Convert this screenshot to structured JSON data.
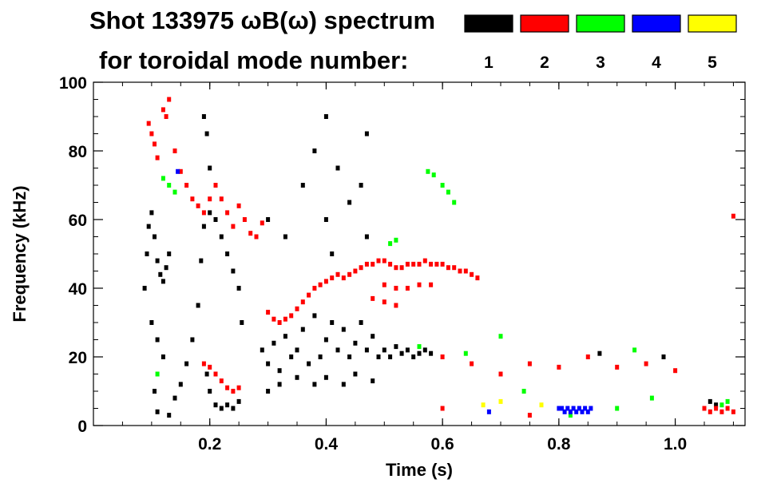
{
  "chart_data": {
    "type": "heatmap",
    "title_line1": "Shot 133975 ωB(ω) spectrum",
    "title_line2": "for toroidal mode number:",
    "xlabel": "Time (s)",
    "ylabel": "Frequency (kHz)",
    "xlim": [
      0.0,
      1.12
    ],
    "ylim": [
      0,
      100
    ],
    "x_ticks": [
      {
        "value": 0.2,
        "label": "0.2"
      },
      {
        "value": 0.4,
        "label": "0.4"
      },
      {
        "value": 0.6,
        "label": "0.6"
      },
      {
        "value": 0.8,
        "label": "0.8"
      },
      {
        "value": 1.0,
        "label": "1.0"
      }
    ],
    "y_ticks": [
      {
        "value": 0,
        "label": "0"
      },
      {
        "value": 20,
        "label": "20"
      },
      {
        "value": 40,
        "label": "40"
      },
      {
        "value": 60,
        "label": "60"
      },
      {
        "value": 80,
        "label": "80"
      },
      {
        "value": 100,
        "label": "100"
      }
    ],
    "legend": [
      {
        "label": "1",
        "color": "#000000"
      },
      {
        "label": "2",
        "color": "#ff0000"
      },
      {
        "label": "3",
        "color": "#00ff00"
      },
      {
        "label": "4",
        "color": "#0000ff"
      },
      {
        "label": "5",
        "color": "#ffff00"
      }
    ],
    "series": [
      {
        "mode": 1,
        "color": "#000000",
        "points": [
          [
            0.088,
            40
          ],
          [
            0.092,
            50
          ],
          [
            0.095,
            58
          ],
          [
            0.1,
            62
          ],
          [
            0.105,
            55
          ],
          [
            0.11,
            48
          ],
          [
            0.115,
            44
          ],
          [
            0.12,
            42
          ],
          [
            0.125,
            46
          ],
          [
            0.13,
            50
          ],
          [
            0.1,
            30
          ],
          [
            0.11,
            25
          ],
          [
            0.12,
            20
          ],
          [
            0.105,
            10
          ],
          [
            0.11,
            4
          ],
          [
            0.13,
            3
          ],
          [
            0.14,
            8
          ],
          [
            0.15,
            12
          ],
          [
            0.16,
            18
          ],
          [
            0.17,
            25
          ],
          [
            0.18,
            35
          ],
          [
            0.185,
            48
          ],
          [
            0.19,
            58
          ],
          [
            0.2,
            62
          ],
          [
            0.21,
            60
          ],
          [
            0.22,
            55
          ],
          [
            0.23,
            50
          ],
          [
            0.24,
            45
          ],
          [
            0.25,
            40
          ],
          [
            0.255,
            30
          ],
          [
            0.195,
            15
          ],
          [
            0.2,
            10
          ],
          [
            0.21,
            6
          ],
          [
            0.22,
            5
          ],
          [
            0.23,
            6
          ],
          [
            0.24,
            5
          ],
          [
            0.25,
            7
          ],
          [
            0.19,
            90
          ],
          [
            0.195,
            85
          ],
          [
            0.2,
            75
          ],
          [
            0.29,
            22
          ],
          [
            0.3,
            18
          ],
          [
            0.31,
            24
          ],
          [
            0.32,
            16
          ],
          [
            0.33,
            26
          ],
          [
            0.34,
            20
          ],
          [
            0.35,
            22
          ],
          [
            0.36,
            28
          ],
          [
            0.37,
            18
          ],
          [
            0.38,
            32
          ],
          [
            0.39,
            20
          ],
          [
            0.4,
            25
          ],
          [
            0.41,
            30
          ],
          [
            0.42,
            22
          ],
          [
            0.43,
            28
          ],
          [
            0.44,
            20
          ],
          [
            0.45,
            24
          ],
          [
            0.46,
            30
          ],
          [
            0.47,
            22
          ],
          [
            0.48,
            26
          ],
          [
            0.49,
            20
          ],
          [
            0.5,
            22
          ],
          [
            0.51,
            20
          ],
          [
            0.52,
            23
          ],
          [
            0.53,
            21
          ],
          [
            0.54,
            22
          ],
          [
            0.55,
            20
          ],
          [
            0.56,
            21
          ],
          [
            0.57,
            22
          ],
          [
            0.58,
            21
          ],
          [
            0.3,
            10
          ],
          [
            0.32,
            12
          ],
          [
            0.35,
            14
          ],
          [
            0.38,
            12
          ],
          [
            0.4,
            14
          ],
          [
            0.43,
            12
          ],
          [
            0.45,
            15
          ],
          [
            0.48,
            13
          ],
          [
            0.3,
            60
          ],
          [
            0.33,
            55
          ],
          [
            0.36,
            70
          ],
          [
            0.38,
            80
          ],
          [
            0.4,
            90
          ],
          [
            0.4,
            60
          ],
          [
            0.41,
            50
          ],
          [
            0.42,
            75
          ],
          [
            0.44,
            65
          ],
          [
            0.46,
            70
          ],
          [
            0.47,
            85
          ],
          [
            0.47,
            55
          ],
          [
            0.87,
            21
          ],
          [
            0.98,
            20
          ],
          [
            1.06,
            7
          ],
          [
            1.07,
            6
          ]
        ]
      },
      {
        "mode": 2,
        "color": "#ff0000",
        "points": [
          [
            0.095,
            88
          ],
          [
            0.1,
            85
          ],
          [
            0.105,
            82
          ],
          [
            0.11,
            78
          ],
          [
            0.12,
            92
          ],
          [
            0.125,
            90
          ],
          [
            0.13,
            95
          ],
          [
            0.14,
            80
          ],
          [
            0.15,
            74
          ],
          [
            0.16,
            70
          ],
          [
            0.17,
            66
          ],
          [
            0.18,
            64
          ],
          [
            0.19,
            62
          ],
          [
            0.2,
            66
          ],
          [
            0.21,
            70
          ],
          [
            0.22,
            66
          ],
          [
            0.23,
            62
          ],
          [
            0.24,
            58
          ],
          [
            0.25,
            64
          ],
          [
            0.26,
            60
          ],
          [
            0.27,
            56
          ],
          [
            0.28,
            55
          ],
          [
            0.29,
            59
          ],
          [
            0.19,
            18
          ],
          [
            0.2,
            17
          ],
          [
            0.21,
            15
          ],
          [
            0.22,
            13
          ],
          [
            0.23,
            11
          ],
          [
            0.24,
            10
          ],
          [
            0.25,
            11
          ],
          [
            0.3,
            33
          ],
          [
            0.31,
            31
          ],
          [
            0.32,
            30
          ],
          [
            0.33,
            31
          ],
          [
            0.34,
            32
          ],
          [
            0.35,
            34
          ],
          [
            0.36,
            36
          ],
          [
            0.37,
            38
          ],
          [
            0.38,
            40
          ],
          [
            0.39,
            41
          ],
          [
            0.4,
            42
          ],
          [
            0.41,
            43
          ],
          [
            0.42,
            44
          ],
          [
            0.43,
            43
          ],
          [
            0.44,
            44
          ],
          [
            0.45,
            45
          ],
          [
            0.46,
            46
          ],
          [
            0.47,
            47
          ],
          [
            0.48,
            47
          ],
          [
            0.49,
            48
          ],
          [
            0.5,
            48
          ],
          [
            0.51,
            47
          ],
          [
            0.52,
            46
          ],
          [
            0.53,
            46
          ],
          [
            0.54,
            47
          ],
          [
            0.55,
            47
          ],
          [
            0.56,
            47
          ],
          [
            0.57,
            48
          ],
          [
            0.58,
            47
          ],
          [
            0.59,
            47
          ],
          [
            0.6,
            47
          ],
          [
            0.61,
            46
          ],
          [
            0.62,
            46
          ],
          [
            0.63,
            45
          ],
          [
            0.64,
            45
          ],
          [
            0.65,
            44
          ],
          [
            0.66,
            43
          ],
          [
            0.5,
            41
          ],
          [
            0.52,
            40
          ],
          [
            0.54,
            40
          ],
          [
            0.56,
            41
          ],
          [
            0.58,
            41
          ],
          [
            0.48,
            37
          ],
          [
            0.5,
            36
          ],
          [
            0.52,
            35
          ],
          [
            0.6,
            20
          ],
          [
            0.65,
            18
          ],
          [
            0.7,
            15
          ],
          [
            0.75,
            18
          ],
          [
            0.8,
            17
          ],
          [
            0.85,
            20
          ],
          [
            0.9,
            17
          ],
          [
            0.95,
            18
          ],
          [
            1.0,
            16
          ],
          [
            1.05,
            5
          ],
          [
            1.06,
            4
          ],
          [
            1.07,
            5
          ],
          [
            1.08,
            4
          ],
          [
            1.09,
            5
          ],
          [
            1.1,
            4
          ],
          [
            0.6,
            5
          ],
          [
            0.75,
            3
          ],
          [
            1.1,
            61
          ]
        ]
      },
      {
        "mode": 3,
        "color": "#00ff00",
        "points": [
          [
            0.12,
            72
          ],
          [
            0.13,
            70
          ],
          [
            0.14,
            68
          ],
          [
            0.575,
            74
          ],
          [
            0.585,
            73
          ],
          [
            0.6,
            70
          ],
          [
            0.61,
            68
          ],
          [
            0.62,
            65
          ],
          [
            0.51,
            53
          ],
          [
            0.52,
            54
          ],
          [
            0.56,
            23
          ],
          [
            0.64,
            21
          ],
          [
            0.7,
            26
          ],
          [
            0.74,
            10
          ],
          [
            0.82,
            3
          ],
          [
            0.9,
            5
          ],
          [
            0.93,
            22
          ],
          [
            0.96,
            8
          ],
          [
            1.08,
            6
          ],
          [
            1.09,
            7
          ],
          [
            0.11,
            15
          ]
        ]
      },
      {
        "mode": 4,
        "color": "#0000ff",
        "points": [
          [
            0.145,
            74
          ],
          [
            0.8,
            5
          ],
          [
            0.805,
            5
          ],
          [
            0.81,
            4
          ],
          [
            0.815,
            5
          ],
          [
            0.82,
            4
          ],
          [
            0.825,
            5
          ],
          [
            0.83,
            4
          ],
          [
            0.835,
            5
          ],
          [
            0.84,
            4
          ],
          [
            0.845,
            5
          ],
          [
            0.85,
            4
          ],
          [
            0.855,
            5
          ],
          [
            0.68,
            4
          ]
        ]
      },
      {
        "mode": 5,
        "color": "#ffff00",
        "points": [
          [
            0.67,
            6
          ],
          [
            0.7,
            7
          ],
          [
            0.77,
            6
          ]
        ]
      }
    ]
  }
}
